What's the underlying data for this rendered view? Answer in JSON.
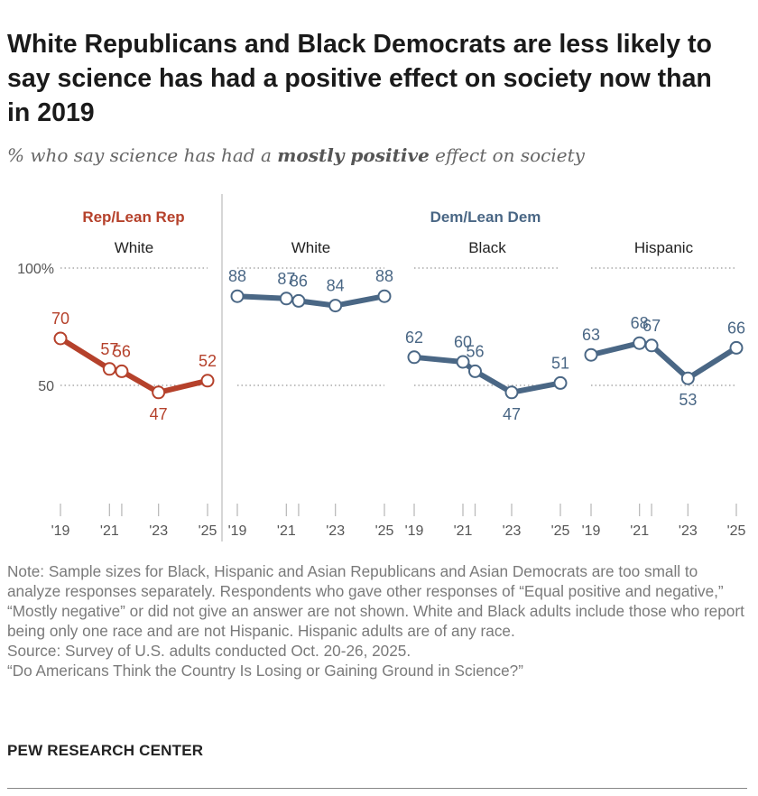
{
  "title": "White Republicans and Black Democrats are less likely to say science has had a positive effect on society now than in 2019",
  "subtitle": {
    "before": "% who say science has had a ",
    "emphasis": "mostly positive",
    "after": " effect on society"
  },
  "colors": {
    "rep": "#b5412b",
    "dem": "#4a6785",
    "grid": "#999999",
    "tick": "#bbbbbb",
    "divider": "#bbbbbb"
  },
  "chart_data": {
    "type": "line",
    "y_ticks": [
      "100%",
      "50"
    ],
    "ylim": [
      0,
      100
    ],
    "groups": [
      {
        "label": "Rep/Lean Rep",
        "color_key": "rep",
        "panels": [
          "white_rep"
        ]
      },
      {
        "label": "Dem/Lean Dem",
        "color_key": "dem",
        "panels": [
          "white_dem",
          "black_dem",
          "hispanic_dem"
        ]
      }
    ],
    "panels": [
      {
        "id": "white_rep",
        "label": "White",
        "color_key": "rep",
        "x": [
          2019,
          2021,
          2021.5,
          2023,
          2025
        ],
        "values": [
          70,
          57,
          56,
          47,
          52
        ],
        "label_pos": [
          "above",
          "above",
          "above",
          "below",
          "above"
        ],
        "x_tick_values": [
          2019,
          2021,
          2023,
          2025
        ],
        "x_tick_labels": [
          "'19",
          "'21",
          "'23",
          "'25"
        ]
      },
      {
        "id": "white_dem",
        "label": "White",
        "color_key": "dem",
        "x": [
          2019,
          2021,
          2021.5,
          2023,
          2025
        ],
        "values": [
          88,
          87,
          86,
          84,
          88
        ],
        "label_pos": [
          "above",
          "above",
          "above",
          "above",
          "above"
        ],
        "x_tick_values": [
          2019,
          2021,
          2023,
          2025
        ],
        "x_tick_labels": [
          "'19",
          "'21",
          "'23",
          "'25"
        ]
      },
      {
        "id": "black_dem",
        "label": "Black",
        "color_key": "dem",
        "x": [
          2019,
          2021,
          2021.5,
          2023,
          2025
        ],
        "values": [
          62,
          60,
          56,
          47,
          51
        ],
        "label_pos": [
          "above",
          "above",
          "above",
          "below",
          "above"
        ],
        "x_tick_values": [
          2019,
          2021,
          2023,
          2025
        ],
        "x_tick_labels": [
          "'19",
          "'21",
          "'23",
          "'25"
        ]
      },
      {
        "id": "hispanic_dem",
        "label": "Hispanic",
        "color_key": "dem",
        "x": [
          2019,
          2021,
          2021.5,
          2023,
          2025
        ],
        "values": [
          63,
          68,
          67,
          53,
          66
        ],
        "label_pos": [
          "above",
          "above",
          "above",
          "below",
          "above"
        ],
        "x_tick_values": [
          2019,
          2021,
          2023,
          2025
        ],
        "x_tick_labels": [
          "'19",
          "'21",
          "'23",
          "'25"
        ]
      }
    ]
  },
  "notes": [
    "Note: Sample sizes for Black, Hispanic and Asian Republicans and Asian Democrats are too small to analyze responses separately. Respondents who gave other responses of “Equal positive and negative,” “Mostly negative” or did not give an answer are not shown. White and Black adults include those who report being only one race and are not Hispanic. Hispanic adults are of any race.",
    "Source: Survey of U.S. adults conducted Oct. 20-26, 2025.",
    "“Do Americans Think the Country Is Losing or Gaining Ground in Science?”"
  ],
  "brand": "PEW RESEARCH CENTER"
}
